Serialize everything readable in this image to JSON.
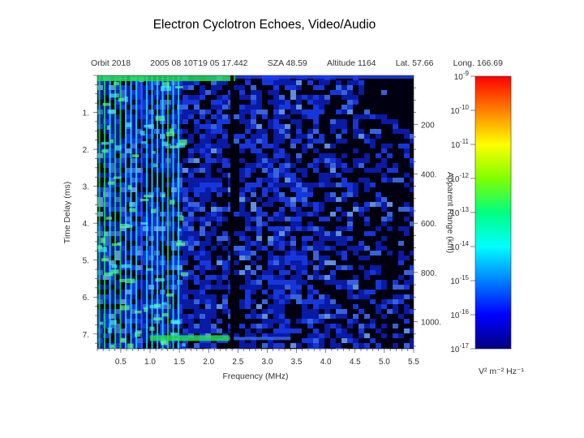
{
  "title": "Electron Cyclotron Echoes,  Video/Audio",
  "info": [
    {
      "label": "Orbit",
      "value": "2018"
    },
    {
      "label": "",
      "value": "2005 08 10T19 05 17.442"
    },
    {
      "label": "SZA",
      "value": "48.59"
    },
    {
      "label": "Altitude",
      "value": "1164"
    },
    {
      "label": "Lat.",
      "value": "57.66"
    },
    {
      "label": "Long.",
      "value": "166.69"
    }
  ],
  "figure_id": "",
  "colors": {
    "background_dark": "#000010",
    "echo_blue": "#1a40ff",
    "echo_green": "#22dd55",
    "echo_cyan": "#20e0ff"
  },
  "chart_data": {
    "type": "heatmap",
    "xlabel": "Frequency (MHz)",
    "ylabel": "Time Delay (ms)",
    "y2label": "Apparent Range (km)",
    "colorbar_label": "V² m⁻² Hz⁻¹",
    "xlim": [
      0.1,
      5.5
    ],
    "ylim": [
      7.4,
      0
    ],
    "xticks": [
      0.5,
      1.0,
      1.5,
      2.0,
      2.5,
      3.0,
      3.5,
      4.0,
      4.5,
      5.0,
      5.5
    ],
    "xtick_labels": [
      "0.5",
      "1.0",
      "1.5",
      "2.0",
      "2.5",
      "3.0",
      "3.5",
      "4.0",
      "4.5",
      "5.0",
      "5.5"
    ],
    "yticks": [
      1,
      2,
      3,
      4,
      5,
      6,
      7
    ],
    "ytick_labels": [
      "1.",
      "2.",
      "3.",
      "4.",
      "5.",
      "6.",
      "7."
    ],
    "y2ticks_km": [
      200,
      400,
      600,
      800,
      1000
    ],
    "y2tick_labels": [
      "200",
      "400.",
      "600.",
      "800.",
      "1000."
    ],
    "y2_km_per_ms": 150,
    "colorbar_exponents": [
      -9,
      -10,
      -11,
      -12,
      -13,
      -14,
      -15,
      -16,
      -17
    ],
    "colorbar_base": "10",
    "colorbar_range": [
      -17,
      -9
    ],
    "colorbar_scale": "log",
    "colorbar_stops": [
      "#000080",
      "#0000ff",
      "#0080ff",
      "#00ffff",
      "#00ff80",
      "#80ff00",
      "#ffff00",
      "#ff8000",
      "#ff0000"
    ],
    "features": {
      "harmonic_line_spacing_mhz": 0.09,
      "harmonic_region_mhz": [
        0.1,
        1.55
      ],
      "surface_echo_delay_ms": 7.1,
      "gap_frequency_mhz": 2.4,
      "dense_noise_region_mhz": [
        1.55,
        5.5
      ]
    }
  }
}
